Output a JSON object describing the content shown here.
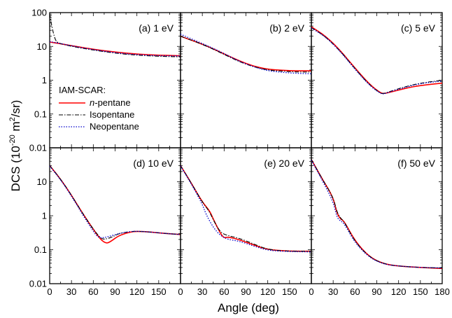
{
  "chart_data": {
    "type": "line",
    "ylabel_main": "DCS (10",
    "ylabel_exp": "-20",
    "ylabel_rest": " m",
    "ylabel_sq": "2",
    "ylabel_end": "/sr)",
    "xlabel": "Angle (deg)",
    "yscale": "log",
    "ylim": [
      0.01,
      100
    ],
    "xlim": [
      0,
      180
    ],
    "y_tick_labels": [
      "100",
      "10",
      "1",
      "0.1",
      "0.01"
    ],
    "y_tick_values": [
      100,
      10,
      1,
      0.1,
      0.01
    ],
    "y_tick_labels_lower": [
      "10",
      "1",
      "0.1",
      "0.01"
    ],
    "y_tick_values_lower": [
      10,
      1,
      0.1,
      0.01
    ],
    "x_tick_labels_left": [
      "0",
      "30",
      "60",
      "90",
      "120",
      "150"
    ],
    "x_tick_values_left": [
      0,
      30,
      60,
      90,
      120,
      150
    ],
    "x_tick_labels_right": [
      "0",
      "30",
      "60",
      "90",
      "120",
      "150",
      "180"
    ],
    "x_tick_values_right": [
      0,
      30,
      60,
      90,
      120,
      150,
      180
    ],
    "legend": {
      "title": "IAM-SCAR:",
      "entries": [
        {
          "prefix": "n",
          "label": "-pentane",
          "color": "#ff0000",
          "style": "solid"
        },
        {
          "prefix": "",
          "label": "Isopentane",
          "color": "#000000",
          "style": "dashdot"
        },
        {
          "prefix": "",
          "label": "Neopentane",
          "color": "#0000cc",
          "style": "dotted"
        }
      ]
    },
    "panels": [
      {
        "label": "(a) 1 eV",
        "series": [
          {
            "name": "n-pentane",
            "x": [
              0,
              10,
              30,
              60,
              90,
              120,
              150,
              180
            ],
            "y": [
              13.5,
              12.5,
              10.5,
              8.2,
              6.8,
              5.9,
              5.5,
              5.3
            ]
          },
          {
            "name": "Isopentane",
            "x": [
              0,
              2,
              5,
              8,
              12,
              30,
              60,
              90,
              120,
              150,
              180
            ],
            "y": [
              95,
              50,
              25,
              15,
              12.5,
              10,
              7.8,
              6.3,
              5.5,
              5.1,
              4.9
            ]
          },
          {
            "name": "Neopentane",
            "x": [
              0,
              10,
              30,
              60,
              90,
              120,
              150,
              180
            ],
            "y": [
              13.8,
              12.8,
              10.4,
              8.0,
              6.5,
              5.7,
              5.3,
              5.2
            ]
          }
        ]
      },
      {
        "label": "(b) 2 eV",
        "series": [
          {
            "name": "n-pentane",
            "x": [
              0,
              20,
              40,
              60,
              80,
              100,
              120,
              140,
              160,
              180
            ],
            "y": [
              20,
              14,
              9.5,
              6,
              3.8,
              2.6,
              2.1,
              1.95,
              1.9,
              1.9
            ]
          },
          {
            "name": "Isopentane",
            "x": [
              0,
              20,
              40,
              60,
              80,
              100,
              120,
              140,
              160,
              180
            ],
            "y": [
              20,
              14,
              9.3,
              5.8,
              3.6,
              2.5,
              2.0,
              1.85,
              1.75,
              1.75
            ]
          },
          {
            "name": "Neopentane",
            "x": [
              0,
              20,
              40,
              60,
              80,
              100,
              120,
              140,
              160,
              180
            ],
            "y": [
              23,
              15,
              9.8,
              6.2,
              3.7,
              2.5,
              1.9,
              1.7,
              1.6,
              1.55
            ]
          }
        ]
      },
      {
        "label": "(c) 5 eV",
        "series": [
          {
            "name": "n-pentane",
            "x": [
              0,
              20,
              40,
              60,
              80,
              95,
              100,
              110,
              130,
              150,
              180
            ],
            "y": [
              38,
              20,
              7.5,
              2.3,
              0.75,
              0.42,
              0.4,
              0.45,
              0.58,
              0.7,
              0.82
            ]
          },
          {
            "name": "Isopentane",
            "x": [
              0,
              20,
              40,
              60,
              80,
              95,
              100,
              110,
              130,
              150,
              180
            ],
            "y": [
              36,
              19,
              7.2,
              2.2,
              0.72,
              0.41,
              0.4,
              0.48,
              0.65,
              0.82,
              1.0
            ]
          },
          {
            "name": "Neopentane",
            "x": [
              0,
              20,
              40,
              60,
              80,
              95,
              100,
              110,
              130,
              150,
              180
            ],
            "y": [
              35,
              19,
              7.0,
              2.1,
              0.7,
              0.4,
              0.39,
              0.47,
              0.62,
              0.8,
              0.95
            ]
          }
        ]
      },
      {
        "label": "(d) 10 eV",
        "series": [
          {
            "name": "n-pentane",
            "x": [
              0,
              15,
              30,
              45,
              60,
              70,
              78,
              85,
              95,
              110,
              120,
              140,
              160,
              180
            ],
            "y": [
              30,
              12,
              4,
              1.2,
              0.4,
              0.2,
              0.15,
              0.18,
              0.26,
              0.33,
              0.35,
              0.33,
              0.3,
              0.28
            ]
          },
          {
            "name": "Isopentane",
            "x": [
              0,
              15,
              30,
              45,
              60,
              70,
              75,
              85,
              95,
              110,
              120,
              140,
              160,
              180
            ],
            "y": [
              30,
              12,
              4,
              1.2,
              0.4,
              0.22,
              0.2,
              0.23,
              0.3,
              0.34,
              0.35,
              0.33,
              0.3,
              0.28
            ]
          },
          {
            "name": "Neopentane",
            "x": [
              0,
              15,
              30,
              45,
              60,
              65,
              70,
              80,
              95,
              110,
              120,
              140,
              160,
              180
            ],
            "y": [
              29,
              11.5,
              3.8,
              1.1,
              0.35,
              0.25,
              0.22,
              0.24,
              0.3,
              0.34,
              0.35,
              0.33,
              0.3,
              0.28
            ]
          }
        ]
      },
      {
        "label": "(e) 20 eV",
        "series": [
          {
            "name": "n-pentane",
            "x": [
              0,
              15,
              30,
              40,
              45,
              55,
              60,
              65,
              80,
              100,
              120,
              150,
              180
            ],
            "y": [
              30,
              9,
              2.5,
              1.4,
              0.8,
              0.3,
              0.22,
              0.24,
              0.2,
              0.14,
              0.1,
              0.09,
              0.09
            ]
          },
          {
            "name": "Isopentane",
            "x": [
              0,
              15,
              30,
              40,
              45,
              55,
              65,
              80,
              100,
              120,
              150,
              180
            ],
            "y": [
              30,
              9,
              2.5,
              1.3,
              0.75,
              0.32,
              0.26,
              0.22,
              0.15,
              0.1,
              0.09,
              0.09
            ]
          },
          {
            "name": "Neopentane",
            "x": [
              0,
              15,
              30,
              35,
              45,
              55,
              65,
              80,
              100,
              120,
              150,
              180
            ],
            "y": [
              29,
              8.5,
              2.2,
              1.1,
              0.45,
              0.26,
              0.2,
              0.18,
              0.13,
              0.095,
              0.088,
              0.086
            ]
          }
        ]
      },
      {
        "label": "(f) 50 eV",
        "series": [
          {
            "name": "n-pentane",
            "x": [
              0,
              15,
              30,
              35,
              40,
              45,
              60,
              80,
              100,
              120,
              150,
              180
            ],
            "y": [
              45,
              12,
              3.5,
              1.2,
              0.8,
              0.7,
              0.18,
              0.06,
              0.038,
              0.033,
              0.03,
              0.028
            ]
          },
          {
            "name": "Isopentane",
            "x": [
              0,
              15,
              30,
              35,
              40,
              45,
              60,
              80,
              100,
              120,
              150,
              180
            ],
            "y": [
              45,
              12,
              3.5,
              1.3,
              0.85,
              0.68,
              0.17,
              0.06,
              0.038,
              0.033,
              0.03,
              0.029
            ]
          },
          {
            "name": "Neopentane",
            "x": [
              0,
              15,
              30,
              35,
              40,
              45,
              60,
              80,
              100,
              120,
              150,
              180
            ],
            "y": [
              43,
              11,
              2.6,
              0.9,
              0.7,
              0.6,
              0.16,
              0.058,
              0.037,
              0.033,
              0.03,
              0.029
            ]
          }
        ]
      }
    ]
  }
}
